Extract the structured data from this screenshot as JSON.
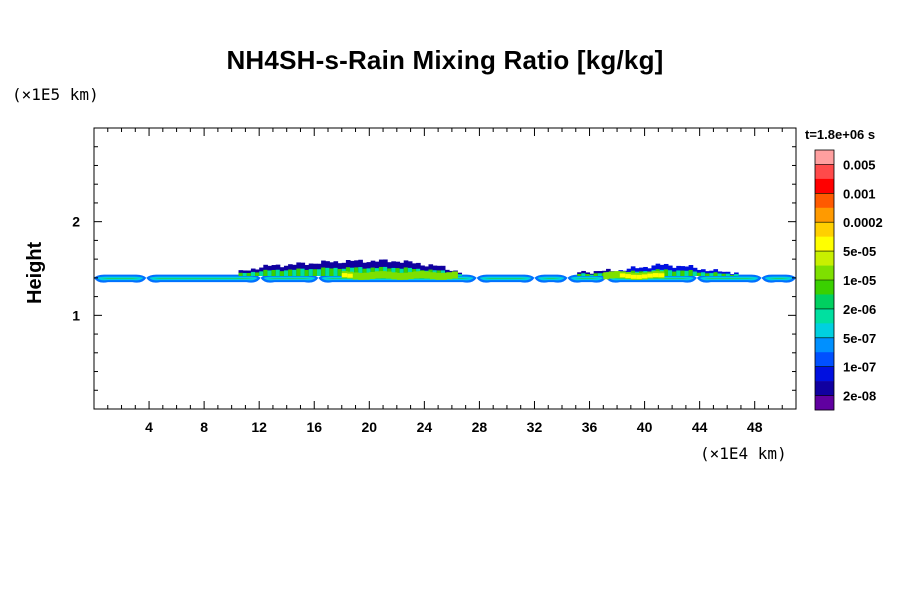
{
  "chart_data": {
    "type": "heatmap",
    "title": "NH4SH-s-Rain Mixing Ratio [kg/kg]",
    "ylabel": "Height",
    "y_unit": "(×1E5 km)",
    "x_unit": "(×1E4 km)",
    "time_label": "t=1.8e+06 s",
    "xlim": [
      0,
      51
    ],
    "ylim": [
      0,
      3
    ],
    "x_ticks": [
      4,
      8,
      12,
      16,
      20,
      24,
      28,
      32,
      36,
      40,
      44,
      48
    ],
    "x_tick_labels": [
      "4",
      "8",
      "12",
      "16",
      "20",
      "24",
      "28",
      "32",
      "36",
      "40",
      "44",
      "48"
    ],
    "y_ticks": [
      1,
      2
    ],
    "y_tick_labels": [
      "1",
      "2"
    ],
    "colorbar": {
      "labels": [
        "0.005",
        "0.001",
        "0.0002",
        "5e-05",
        "1e-05",
        "2e-06",
        "5e-07",
        "1e-07",
        "2e-08"
      ],
      "colors": [
        "#ff9f9f",
        "#ff4a4a",
        "#ff0000",
        "#ff5a00",
        "#ff9a00",
        "#ffd000",
        "#ffff00",
        "#c8f000",
        "#7ee000",
        "#3ad000",
        "#00d060",
        "#00e0a0",
        "#00d0e0",
        "#0090ff",
        "#0050ff",
        "#0010e0",
        "#1000a0",
        "#6000a0"
      ]
    },
    "layer": {
      "base_height": 1.4,
      "segment_breaks_x": [
        3.8,
        12.1,
        16.3,
        27.8,
        32.0,
        34.4,
        37.2,
        43.8,
        48.5
      ],
      "cloud_top_profile": [
        {
          "x": 0,
          "top": 1.43
        },
        {
          "x": 10,
          "top": 1.44
        },
        {
          "x": 12,
          "top": 1.52
        },
        {
          "x": 15,
          "top": 1.55
        },
        {
          "x": 17,
          "top": 1.57
        },
        {
          "x": 19,
          "top": 1.58
        },
        {
          "x": 22,
          "top": 1.58
        },
        {
          "x": 25,
          "top": 1.52
        },
        {
          "x": 27,
          "top": 1.44
        },
        {
          "x": 35,
          "top": 1.46
        },
        {
          "x": 38,
          "top": 1.48
        },
        {
          "x": 41,
          "top": 1.54
        },
        {
          "x": 43,
          "top": 1.52
        },
        {
          "x": 45,
          "top": 1.47
        },
        {
          "x": 51,
          "top": 1.43
        }
      ],
      "max_intensity_regions": [
        {
          "x_start": 18,
          "x_end": 26,
          "level": "5e-05"
        },
        {
          "x_start": 37,
          "x_end": 41,
          "level": "5e-05"
        }
      ]
    }
  }
}
